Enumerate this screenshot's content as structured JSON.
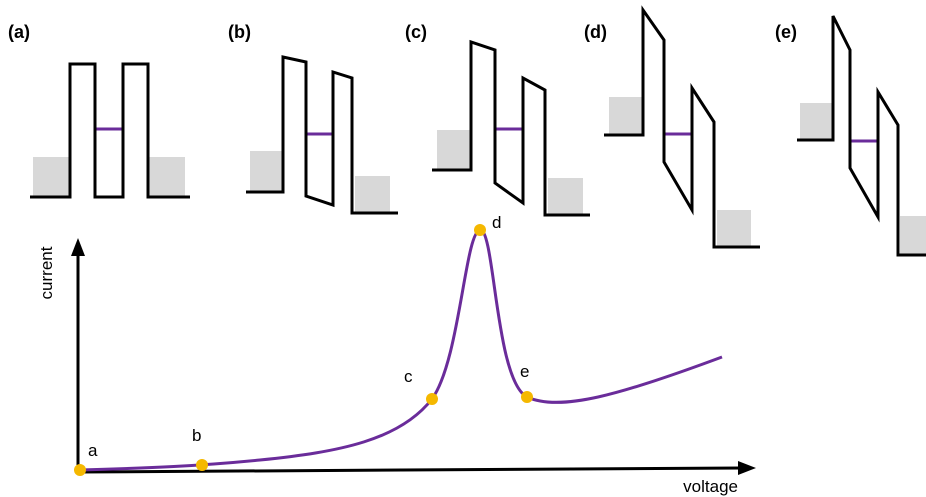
{
  "panels": [
    {
      "label": "(a)"
    },
    {
      "label": "(b)"
    },
    {
      "label": "(c)"
    },
    {
      "label": "(d)"
    },
    {
      "label": "(e)"
    }
  ],
  "axes": {
    "x_label": "voltage",
    "y_label": "current"
  },
  "points": [
    {
      "label": "a"
    },
    {
      "label": "b"
    },
    {
      "label": "c"
    },
    {
      "label": "d"
    },
    {
      "label": "e"
    }
  ]
}
